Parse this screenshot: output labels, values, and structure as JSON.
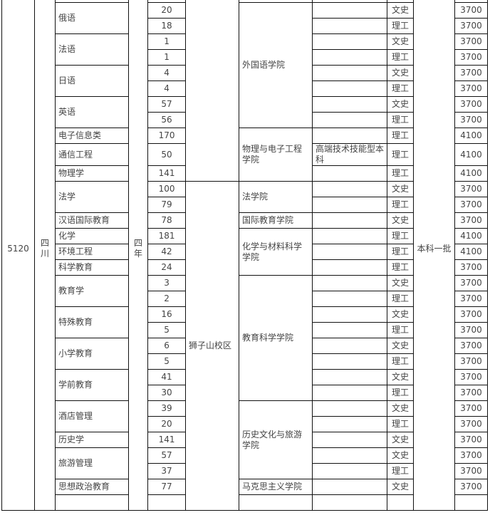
{
  "fixed": {
    "code": "5120",
    "province": "四川",
    "duration": "四年",
    "batch": "本科一批"
  },
  "campuses": [
    {
      "name": "",
      "colleges": [
        {
          "name": "外国语学院",
          "majors": [
            {
              "name": "俄语",
              "entries": [
                {
                  "plan": "20",
                  "type": "",
                  "subject": "文史",
                  "fee": "3700"
                },
                {
                  "plan": "18",
                  "type": "",
                  "subject": "理工",
                  "fee": "3700"
                }
              ]
            },
            {
              "name": "法语",
              "entries": [
                {
                  "plan": "1",
                  "type": "",
                  "subject": "文史",
                  "fee": "3700"
                },
                {
                  "plan": "1",
                  "type": "",
                  "subject": "理工",
                  "fee": "3700"
                }
              ]
            },
            {
              "name": "日语",
              "entries": [
                {
                  "plan": "4",
                  "type": "",
                  "subject": "文史",
                  "fee": "3700"
                },
                {
                  "plan": "4",
                  "type": "",
                  "subject": "理工",
                  "fee": "3700"
                }
              ]
            },
            {
              "name": "英语",
              "entries": [
                {
                  "plan": "57",
                  "type": "",
                  "subject": "文史",
                  "fee": "3700"
                },
                {
                  "plan": "56",
                  "type": "",
                  "subject": "理工",
                  "fee": "3700"
                }
              ]
            }
          ]
        },
        {
          "name": "物理与电子工程学院",
          "majors": [
            {
              "name": "电子信息类",
              "entries": [
                {
                  "plan": "170",
                  "type": "",
                  "subject": "理工",
                  "fee": "4100"
                }
              ]
            },
            {
              "name": "通信工程",
              "entries": [
                {
                  "plan": "50",
                  "type": "高端技术技能型本科",
                  "subject": "理工",
                  "fee": "4100"
                }
              ]
            },
            {
              "name": "物理学",
              "entries": [
                {
                  "plan": "141",
                  "type": "",
                  "subject": "理工",
                  "fee": "4100"
                }
              ]
            }
          ]
        }
      ]
    },
    {
      "name": "狮子山校区",
      "colleges": [
        {
          "name": "法学院",
          "majors": [
            {
              "name": "法学",
              "entries": [
                {
                  "plan": "100",
                  "type": "",
                  "subject": "文史",
                  "fee": "3700"
                },
                {
                  "plan": "79",
                  "type": "",
                  "subject": "理工",
                  "fee": "3700"
                }
              ]
            }
          ]
        },
        {
          "name": "国际教育学院",
          "majors": [
            {
              "name": "汉语国际教育",
              "entries": [
                {
                  "plan": "78",
                  "type": "",
                  "subject": "文史",
                  "fee": "3700"
                }
              ]
            }
          ]
        },
        {
          "name": "化学与材料科学学院",
          "majors": [
            {
              "name": "化学",
              "entries": [
                {
                  "plan": "181",
                  "type": "",
                  "subject": "理工",
                  "fee": "4100"
                }
              ]
            },
            {
              "name": "环境工程",
              "entries": [
                {
                  "plan": "42",
                  "type": "",
                  "subject": "理工",
                  "fee": "4100"
                }
              ]
            },
            {
              "name": "科学教育",
              "entries": [
                {
                  "plan": "24",
                  "type": "",
                  "subject": "理工",
                  "fee": "3700"
                }
              ]
            }
          ]
        },
        {
          "name": "教育科学学院",
          "majors": [
            {
              "name": "教育学",
              "entries": [
                {
                  "plan": "3",
                  "type": "",
                  "subject": "文史",
                  "fee": "3700"
                },
                {
                  "plan": "2",
                  "type": "",
                  "subject": "理工",
                  "fee": "3700"
                }
              ]
            },
            {
              "name": "特殊教育",
              "entries": [
                {
                  "plan": "16",
                  "type": "",
                  "subject": "文史",
                  "fee": "3700"
                },
                {
                  "plan": "5",
                  "type": "",
                  "subject": "理工",
                  "fee": "3700"
                }
              ]
            },
            {
              "name": "小学教育",
              "entries": [
                {
                  "plan": "6",
                  "type": "",
                  "subject": "文史",
                  "fee": "3700"
                },
                {
                  "plan": "5",
                  "type": "",
                  "subject": "理工",
                  "fee": "3700"
                }
              ]
            },
            {
              "name": "学前教育",
              "entries": [
                {
                  "plan": "41",
                  "type": "",
                  "subject": "文史",
                  "fee": "3700"
                },
                {
                  "plan": "30",
                  "type": "",
                  "subject": "理工",
                  "fee": "3700"
                }
              ]
            }
          ]
        },
        {
          "name": "历史文化与旅游学院",
          "majors": [
            {
              "name": "酒店管理",
              "entries": [
                {
                  "plan": "39",
                  "type": "",
                  "subject": "文史",
                  "fee": "3700"
                },
                {
                  "plan": "20",
                  "type": "",
                  "subject": "理工",
                  "fee": "3700"
                }
              ]
            },
            {
              "name": "历史学",
              "entries": [
                {
                  "plan": "141",
                  "type": "",
                  "subject": "文史",
                  "fee": "3700"
                }
              ]
            },
            {
              "name": "旅游管理",
              "entries": [
                {
                  "plan": "57",
                  "type": "",
                  "subject": "文史",
                  "fee": "3700"
                },
                {
                  "plan": "37",
                  "type": "",
                  "subject": "理工",
                  "fee": "3700"
                }
              ]
            }
          ]
        },
        {
          "name": "马克思主义学院",
          "majors": [
            {
              "name": "思想政治教育",
              "entries": [
                {
                  "plan": "77",
                  "type": "",
                  "subject": "文史",
                  "fee": "3700"
                }
              ]
            }
          ]
        }
      ]
    }
  ]
}
